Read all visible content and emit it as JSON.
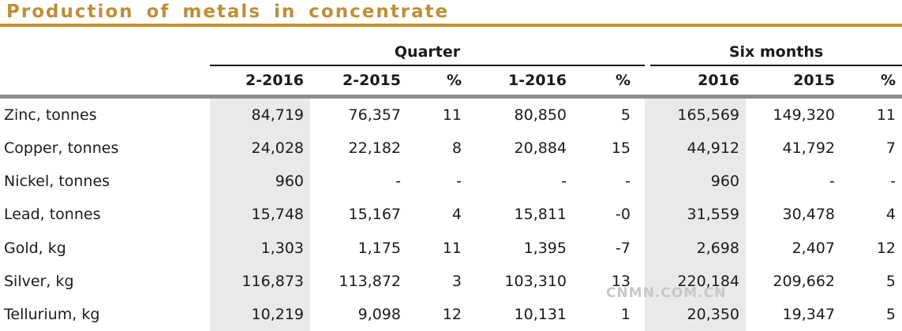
{
  "title": "Production of metals in concentrate",
  "watermark": "CNMN.COM.CN",
  "colors": {
    "accent_gold": "#be8f38",
    "title_rule_gold": "#c09139",
    "header_rule_gray": "#8c8c8c",
    "column_shade": "#e9e9e9",
    "text": "#1b1b1b",
    "watermark_gray": "#c8c8c8"
  },
  "chart_data": {
    "type": "table",
    "title": "Production of metals in concentrate",
    "group_headers": [
      {
        "label": "Quarter",
        "spans_columns": [
          "2-2016",
          "2-2015",
          "%",
          "1-2016",
          "%"
        ]
      },
      {
        "label": "Six months",
        "spans_columns": [
          "2016",
          "2015",
          "%"
        ]
      }
    ],
    "columns": [
      "",
      "2-2016",
      "2-2015",
      "%",
      "1-2016",
      "%",
      "2016",
      "2015",
      "%"
    ],
    "rows": [
      [
        "Zinc, tonnes",
        "84,719",
        "76,357",
        "11",
        "80,850",
        "5",
        "165,569",
        "149,320",
        "11"
      ],
      [
        "Copper, tonnes",
        "24,028",
        "22,182",
        "8",
        "20,884",
        "15",
        "44,912",
        "41,792",
        "7"
      ],
      [
        "Nickel, tonnes",
        "960",
        "-",
        "-",
        "-",
        "-",
        "960",
        "-",
        "-"
      ],
      [
        "Lead, tonnes",
        "15,748",
        "15,167",
        "4",
        "15,811",
        "-0",
        "31,559",
        "30,478",
        "4"
      ],
      [
        "Gold, kg",
        "1,303",
        "1,175",
        "11",
        "1,395",
        "-7",
        "2,698",
        "2,407",
        "12"
      ],
      [
        "Silver, kg",
        "116,873",
        "113,872",
        "3",
        "103,310",
        "13",
        "220,184",
        "209,662",
        "5"
      ],
      [
        "Tellurium, kg",
        "10,219",
        "9,098",
        "12",
        "10,131",
        "1",
        "20,350",
        "19,347",
        "5"
      ]
    ],
    "layout": {
      "shaded_columns": [
        "2-2016",
        "2016"
      ],
      "grid": "off",
      "number_alignment": "right"
    }
  }
}
